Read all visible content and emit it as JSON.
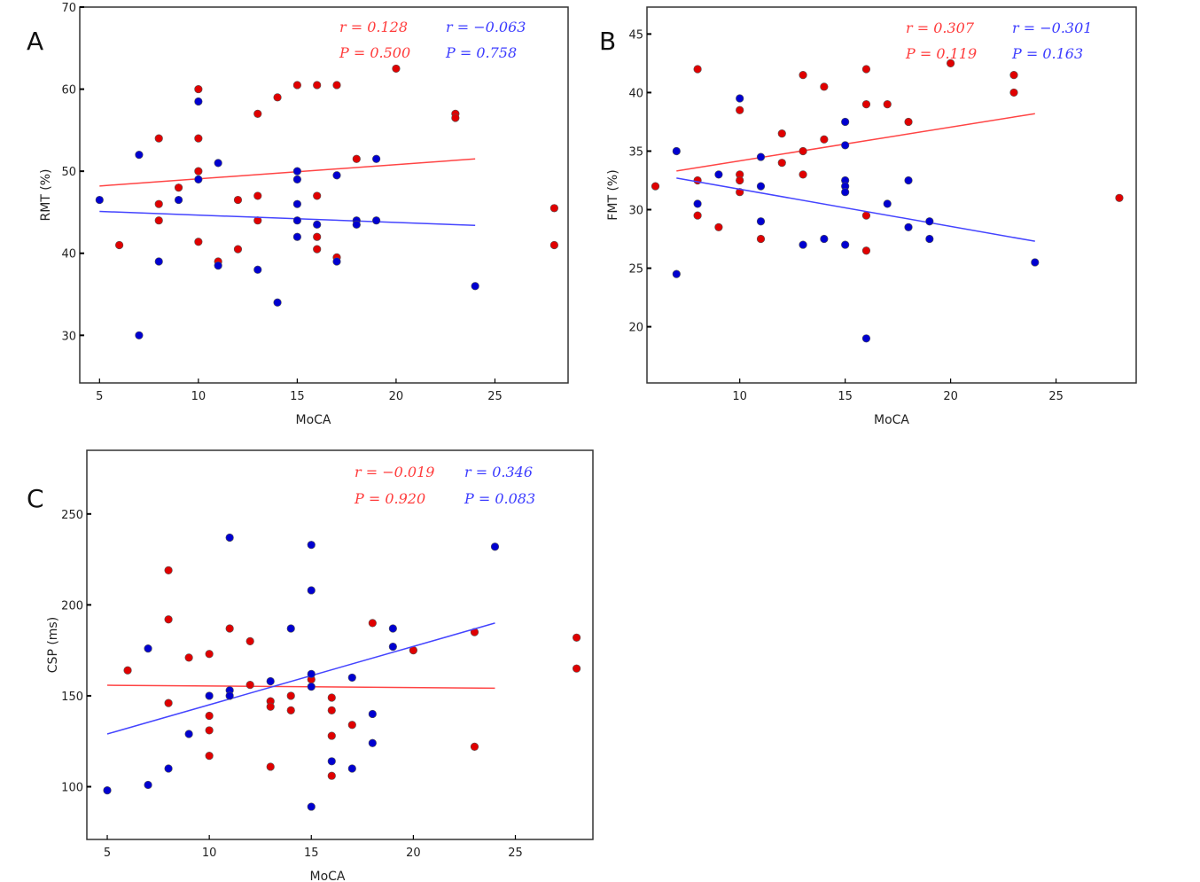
{
  "colors": {
    "red_series": "#e00000",
    "blue_series": "#0000d0",
    "red_text": "#ff3c3c",
    "blue_text": "#3c3cff",
    "red_line": "#ff4444",
    "blue_line": "#4444ff"
  },
  "chart_data": [
    {
      "type": "scatter",
      "panel_label": "A",
      "xlabel": "MoCA",
      "ylabel": "RMT (%)",
      "xlim": [
        4,
        28.7
      ],
      "ylim": [
        24.2,
        70
      ],
      "xticks": [
        "5",
        "10",
        "15",
        "20",
        "25"
      ],
      "yticks": [
        "30",
        "40",
        "50",
        "60",
        "70"
      ],
      "grid": false,
      "series": [
        {
          "color": "red",
          "points": [
            [
              6,
              41
            ],
            [
              8,
              54
            ],
            [
              8,
              46
            ],
            [
              8,
              44
            ],
            [
              9,
              48
            ],
            [
              10,
              60
            ],
            [
              10,
              54
            ],
            [
              10,
              50
            ],
            [
              10,
              41.4
            ],
            [
              11,
              39
            ],
            [
              12,
              46.5
            ],
            [
              12,
              40.5
            ],
            [
              13,
              57
            ],
            [
              13,
              47
            ],
            [
              13,
              44
            ],
            [
              14,
              59
            ],
            [
              15,
              60.5
            ],
            [
              16,
              60.5
            ],
            [
              16,
              47
            ],
            [
              16,
              42
            ],
            [
              16,
              40.5
            ],
            [
              17,
              60.5
            ],
            [
              17,
              39.5
            ],
            [
              18,
              51.5
            ],
            [
              20,
              62.5
            ],
            [
              23,
              57
            ],
            [
              23,
              56.5
            ],
            [
              28,
              45.5
            ],
            [
              28,
              41
            ]
          ],
          "fit": [
            [
              5,
              48.2
            ],
            [
              24,
              51.5
            ]
          ],
          "stats": {
            "r": "r = 0.128",
            "p": "P = 0.500"
          }
        },
        {
          "color": "blue",
          "points": [
            [
              5,
              46.5
            ],
            [
              7,
              52
            ],
            [
              7,
              30
            ],
            [
              8,
              39
            ],
            [
              9,
              46.5
            ],
            [
              10,
              58.5
            ],
            [
              10,
              49
            ],
            [
              11,
              51
            ],
            [
              11,
              38.5
            ],
            [
              13,
              38
            ],
            [
              14,
              34
            ],
            [
              15,
              50
            ],
            [
              15,
              49
            ],
            [
              15,
              46
            ],
            [
              15,
              44
            ],
            [
              15,
              42
            ],
            [
              16,
              43.5
            ],
            [
              17,
              49.5
            ],
            [
              17,
              39
            ],
            [
              18,
              44
            ],
            [
              18,
              43.5
            ],
            [
              19,
              51.5
            ],
            [
              19,
              44
            ],
            [
              24,
              36
            ]
          ],
          "fit": [
            [
              5,
              45.1
            ],
            [
              24,
              43.4
            ]
          ],
          "stats": {
            "r": "r = −0.063",
            "p": "P = 0.758"
          }
        }
      ]
    },
    {
      "type": "scatter",
      "panel_label": "B",
      "xlabel": "MoCA",
      "ylabel": "FMT (%)",
      "xlim": [
        5.6,
        28.8
      ],
      "ylim": [
        15.2,
        47.3
      ],
      "xticks": [
        "10",
        "15",
        "20",
        "25"
      ],
      "yticks": [
        "20",
        "25",
        "30",
        "35",
        "40",
        "45"
      ],
      "grid": false,
      "series": [
        {
          "color": "red",
          "points": [
            [
              6,
              32
            ],
            [
              8,
              42
            ],
            [
              8,
              32.5
            ],
            [
              8,
              29.5
            ],
            [
              9,
              28.5
            ],
            [
              10,
              38.5
            ],
            [
              10,
              33
            ],
            [
              10,
              32.5
            ],
            [
              10,
              31.5
            ],
            [
              11,
              27.5
            ],
            [
              12,
              36.5
            ],
            [
              12,
              34
            ],
            [
              13,
              41.5
            ],
            [
              13,
              35
            ],
            [
              13,
              33
            ],
            [
              14,
              40.5
            ],
            [
              14,
              36
            ],
            [
              16,
              42
            ],
            [
              16,
              39
            ],
            [
              16,
              29.5
            ],
            [
              16,
              26.5
            ],
            [
              17,
              39
            ],
            [
              18,
              37.5
            ],
            [
              20,
              42.5
            ],
            [
              23,
              41.5
            ],
            [
              23,
              40
            ],
            [
              28,
              31
            ]
          ],
          "fit": [
            [
              7,
              33.3
            ],
            [
              24,
              38.2
            ]
          ],
          "stats": {
            "r": "r = 0.307",
            "p": "P = 0.119"
          }
        },
        {
          "color": "blue",
          "points": [
            [
              7,
              35
            ],
            [
              7,
              24.5
            ],
            [
              8,
              30.5
            ],
            [
              9,
              33
            ],
            [
              10,
              39.5
            ],
            [
              11,
              34.5
            ],
            [
              11,
              32
            ],
            [
              11,
              29
            ],
            [
              13,
              27
            ],
            [
              14,
              27.5
            ],
            [
              15,
              37.5
            ],
            [
              15,
              35.5
            ],
            [
              15,
              32.5
            ],
            [
              15,
              32
            ],
            [
              15,
              31.5
            ],
            [
              15,
              27
            ],
            [
              16,
              19
            ],
            [
              17,
              30.5
            ],
            [
              18,
              32.5
            ],
            [
              18,
              28.5
            ],
            [
              19,
              29
            ],
            [
              19,
              27.5
            ],
            [
              24,
              25.5
            ]
          ],
          "fit": [
            [
              7,
              32.7
            ],
            [
              24,
              27.3
            ]
          ],
          "stats": {
            "r": "r = −0.301",
            "p": "P = 0.163"
          }
        }
      ]
    },
    {
      "type": "scatter",
      "panel_label": "C",
      "xlabel": "MoCA",
      "ylabel": "CSP (ms)",
      "xlim": [
        4,
        28.8
      ],
      "ylim": [
        71,
        285
      ],
      "xticks": [
        "5",
        "10",
        "15",
        "20",
        "25"
      ],
      "yticks": [
        "100",
        "150",
        "200",
        "250"
      ],
      "grid": false,
      "series": [
        {
          "color": "red",
          "points": [
            [
              6,
              164
            ],
            [
              8,
              219
            ],
            [
              8,
              192
            ],
            [
              8,
              146
            ],
            [
              9,
              171
            ],
            [
              10,
              173
            ],
            [
              10,
              139
            ],
            [
              10,
              131
            ],
            [
              10,
              117
            ],
            [
              11,
              187
            ],
            [
              12,
              180
            ],
            [
              12,
              156
            ],
            [
              13,
              147
            ],
            [
              13,
              144
            ],
            [
              13,
              111
            ],
            [
              14,
              150
            ],
            [
              14,
              142
            ],
            [
              15,
              159
            ],
            [
              16,
              149
            ],
            [
              16,
              142
            ],
            [
              16,
              128
            ],
            [
              16,
              106
            ],
            [
              17,
              134
            ],
            [
              18,
              190
            ],
            [
              20,
              175
            ],
            [
              23,
              185
            ],
            [
              23,
              122
            ],
            [
              28,
              182
            ],
            [
              28,
              165
            ]
          ],
          "fit": [
            [
              5,
              155.8
            ],
            [
              24,
              154.2
            ]
          ],
          "stats": {
            "r": "r = −0.019",
            "p": "P = 0.920"
          }
        },
        {
          "color": "blue",
          "points": [
            [
              5,
              98
            ],
            [
              7,
              176
            ],
            [
              7,
              101
            ],
            [
              8,
              110
            ],
            [
              9,
              129
            ],
            [
              10,
              150
            ],
            [
              11,
              237
            ],
            [
              11,
              153
            ],
            [
              11,
              150
            ],
            [
              13,
              158
            ],
            [
              14,
              187
            ],
            [
              15,
              233
            ],
            [
              15,
              208
            ],
            [
              15,
              162
            ],
            [
              15,
              155
            ],
            [
              15,
              89
            ],
            [
              16,
              114
            ],
            [
              17,
              160
            ],
            [
              17,
              110
            ],
            [
              18,
              140
            ],
            [
              18,
              124
            ],
            [
              19,
              187
            ],
            [
              19,
              177
            ],
            [
              24,
              232
            ]
          ],
          "fit": [
            [
              5,
              129
            ],
            [
              24,
              190
            ]
          ],
          "stats": {
            "r": "r = 0.346",
            "p": "P = 0.083"
          }
        }
      ]
    }
  ]
}
